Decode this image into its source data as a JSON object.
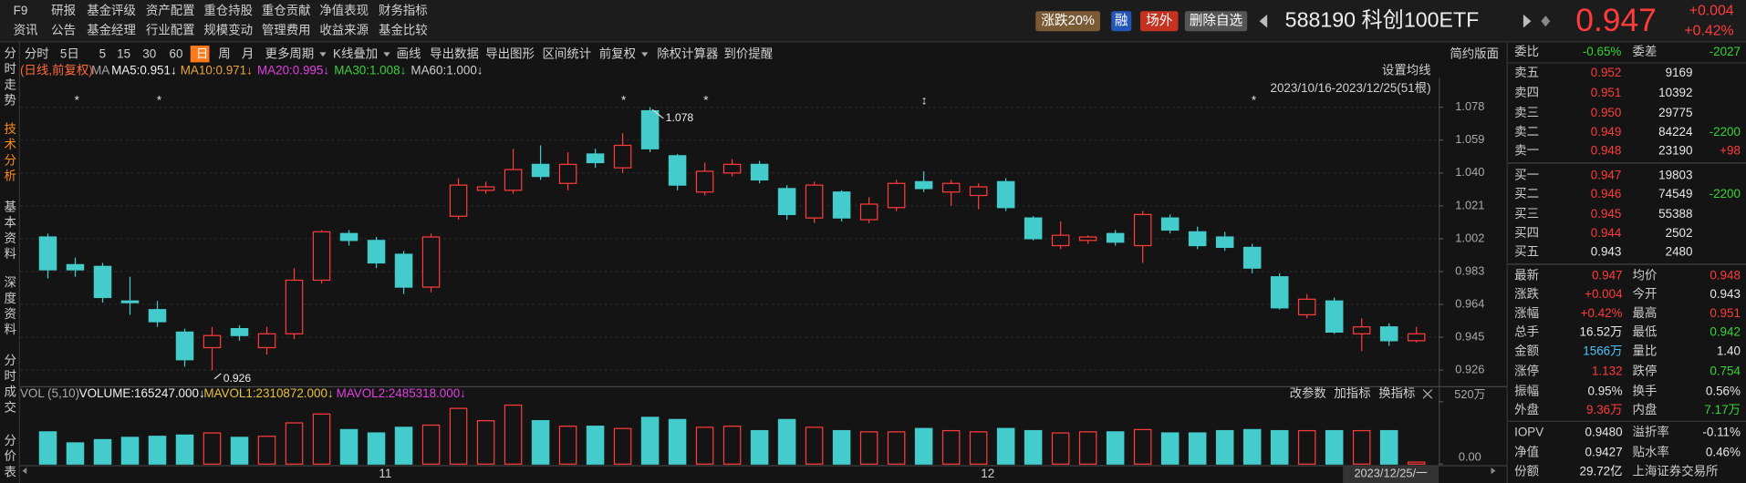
{
  "menu": {
    "row1": [
      "F9",
      "研报",
      "基金评级",
      "资产配置",
      "重仓持股",
      "重仓贡献",
      "净值表现",
      "财务指标"
    ],
    "row2": [
      "资讯",
      "公告",
      "基金经理",
      "行业配置",
      "规模变动",
      "管理费用",
      "收益来源",
      "基金比较"
    ]
  },
  "buttons": [
    "涨跌20%",
    "融",
    "场外",
    "删除自选"
  ],
  "security": {
    "title": "588190 科创100ETF",
    "price": "0.947",
    "change": "+0.004",
    "change_pct": "+0.42%"
  },
  "sidebar": {
    "items": [
      "分时走势",
      "技术分析",
      "基本资料",
      "深度资料",
      "分时成交",
      "分价表"
    ],
    "active": 1
  },
  "toolbar": {
    "items": [
      "分时",
      "5日",
      "5",
      "15",
      "30",
      "60",
      "日",
      "周",
      "月",
      "更多周期",
      "K线叠加",
      "画线",
      "导出数据",
      "导出图形",
      "区间统计",
      "前复权",
      "除权计算器",
      "到价提醒"
    ],
    "active": 6,
    "right": "简约版面"
  },
  "kline": {
    "mode": "(日线,前复权)",
    "ma_label": "MA",
    "ma": [
      "MA5:0.951↓",
      "MA10:0.971↓",
      "MA20:0.995↓",
      "MA30:1.008↓",
      "MA60:1.000↓"
    ],
    "settings": "设置均线",
    "range": "2023/10/16-2023/12/25(51根)",
    "markers": [
      "*",
      "*",
      "*",
      "*",
      "↕",
      "*"
    ],
    "open": [
      1.003,
      0.987,
      0.986,
      0.966,
      0.961,
      0.948,
      0.939,
      0.95,
      0.939,
      0.947,
      0.978,
      1.005,
      1.001,
      0.993,
      0.974,
      1.015,
      1.03,
      1.03,
      1.045,
      1.034,
      1.051,
      1.043,
      1.076,
      1.05,
      1.029,
      1.04,
      1.045,
      1.031,
      1.014,
      1.029,
      1.013,
      1.02,
      1.035,
      1.029,
      1.027,
      1.035,
      1.014,
      0.998,
      1.001,
      1.005,
      0.998,
      1.014,
      1.006,
      1.003,
      0.997,
      0.98,
      0.958,
      0.966,
      0.947,
      0.951,
      0.943
    ],
    "high": [
      1.005,
      0.991,
      0.988,
      0.98,
      0.966,
      0.95,
      0.951,
      0.952,
      0.951,
      0.985,
      1.007,
      1.007,
      1.003,
      0.995,
      1.005,
      1.037,
      1.035,
      1.054,
      1.056,
      1.052,
      1.054,
      1.063,
      1.078,
      1.051,
      1.046,
      1.048,
      1.047,
      1.033,
      1.035,
      1.03,
      1.026,
      1.036,
      1.041,
      1.036,
      1.034,
      1.037,
      1.015,
      1.012,
      1.004,
      1.007,
      1.018,
      1.016,
      1.009,
      1.006,
      0.999,
      0.982,
      0.97,
      0.968,
      0.956,
      0.953,
      0.951
    ],
    "low": [
      0.979,
      0.98,
      0.965,
      0.958,
      0.951,
      0.928,
      0.926,
      0.943,
      0.935,
      0.944,
      0.976,
      0.998,
      0.985,
      0.97,
      0.971,
      1.013,
      1.028,
      1.028,
      1.036,
      1.03,
      1.043,
      1.04,
      1.052,
      1.03,
      1.027,
      1.038,
      1.034,
      1.013,
      1.011,
      1.012,
      1.011,
      1.018,
      1.029,
      1.021,
      1.019,
      1.018,
      1.001,
      0.996,
      0.999,
      0.998,
      0.988,
      1.005,
      0.996,
      0.995,
      0.982,
      0.961,
      0.956,
      0.947,
      0.937,
      0.94,
      0.942
    ],
    "close": [
      0.984,
      0.984,
      0.968,
      0.965,
      0.954,
      0.932,
      0.946,
      0.946,
      0.947,
      0.978,
      1.006,
      1.001,
      0.988,
      0.974,
      1.003,
      1.033,
      1.032,
      1.042,
      1.038,
      1.045,
      1.046,
      1.056,
      1.054,
      1.033,
      1.041,
      1.045,
      1.036,
      1.016,
      1.033,
      1.014,
      1.022,
      1.034,
      1.031,
      1.034,
      1.032,
      1.02,
      1.002,
      1.004,
      1.003,
      1.0,
      1.016,
      1.007,
      0.998,
      0.997,
      0.985,
      0.962,
      0.967,
      0.948,
      0.951,
      0.943,
      0.947
    ],
    "ylim": [
      0.918,
      1.095
    ],
    "yticks": [
      1.078,
      1.059,
      {
        "value": 1.04,
        "label": "1.040"
      },
      1.021,
      1.002,
      0.983,
      0.964,
      0.945,
      0.926
    ],
    "annotations": [
      1.078,
      0.926
    ],
    "x_labels": [
      "11",
      "12"
    ],
    "date_label": "2023/12/25/一"
  },
  "volume": {
    "legend": [
      "VOL (5,10)",
      "VOLUME:165247.000↓",
      "MAVOL1:2310872.000↓",
      "MAVOL2:2485318.000↓"
    ],
    "buttons": [
      "改参数",
      "加指标",
      "换指标"
    ],
    "values": [
      269,
      177,
      204,
      223,
      232,
      242,
      260,
      223,
      232,
      344,
      418,
      288,
      260,
      307,
      325,
      465,
      362,
      492,
      362,
      316,
      316,
      297,
      390,
      372,
      307,
      316,
      279,
      372,
      307,
      279,
      269,
      269,
      297,
      279,
      269,
      297,
      279,
      260,
      269,
      269,
      288,
      260,
      260,
      279,
      288,
      279,
      279,
      279,
      279,
      279,
      16.52
    ],
    "ylim": [
      0,
      548
    ],
    "yticks": [
      {
        "value": 520,
        "label": "520万"
      },
      {
        "value": 0,
        "label": "0.00"
      }
    ]
  },
  "orderbook": {
    "header": [
      "委比",
      "-0.65%",
      "委差",
      "-2027"
    ],
    "asks": [
      [
        "卖五",
        "0.952",
        "9169"
      ],
      [
        "卖四",
        "0.951",
        "10392"
      ],
      [
        "卖三",
        "0.950",
        "29775"
      ],
      [
        "卖二",
        "0.949",
        "84224",
        "-2200"
      ],
      [
        "卖一",
        "0.948",
        "23190",
        "+98"
      ]
    ],
    "bids": [
      [
        "买一",
        "0.947",
        "19803"
      ],
      [
        "买二",
        "0.946",
        "74549",
        "-2200"
      ],
      [
        "买三",
        "0.945",
        "55388"
      ],
      [
        "买四",
        "0.944",
        "2502"
      ],
      [
        "买五",
        "0.943",
        "2480"
      ]
    ]
  },
  "stats": [
    [
      "最新",
      "0.947",
      "均价",
      "0.948"
    ],
    [
      "涨跌",
      "+0.004",
      "今开",
      "0.943"
    ],
    [
      "涨幅",
      "+0.42%",
      "最高",
      "0.951"
    ],
    [
      "总手",
      "16.52万",
      "最低",
      "0.942"
    ],
    [
      "金额",
      "1566万",
      "量比",
      "1.40"
    ],
    [
      "涨停",
      "1.132",
      "跌停",
      "0.754"
    ],
    [
      "振幅",
      "0.95%",
      "换手",
      "0.56%"
    ],
    [
      "外盘",
      "9.36万",
      "内盘",
      "7.17万"
    ],
    [
      "IOPV",
      "0.9480",
      "溢折率",
      "-0.11%"
    ],
    [
      "净值",
      "0.9427",
      "贴水率",
      "0.46%"
    ],
    [
      "份额",
      "29.72亿",
      "上海证券交易所"
    ]
  ]
}
